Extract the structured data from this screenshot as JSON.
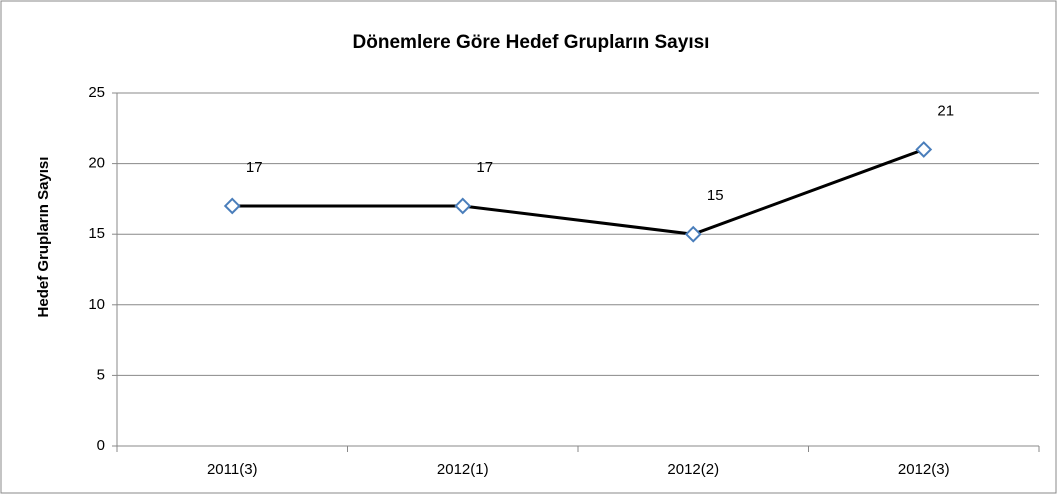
{
  "chart_data": {
    "type": "line",
    "title": "Dönemlere Göre Hedef Grupların Sayısı",
    "y_label": "Hedef Grupların Sayısı",
    "categories": [
      "2011(3)",
      "2012(1)",
      "2012(2)",
      "2012(3)"
    ],
    "values": [
      17,
      17,
      15,
      21
    ],
    "color": "#000000",
    "marker_color": "#4a7ebb",
    "ylim": [
      0,
      25
    ],
    "yticks": [
      0,
      5,
      10,
      15,
      20,
      25
    ],
    "grid": true
  }
}
